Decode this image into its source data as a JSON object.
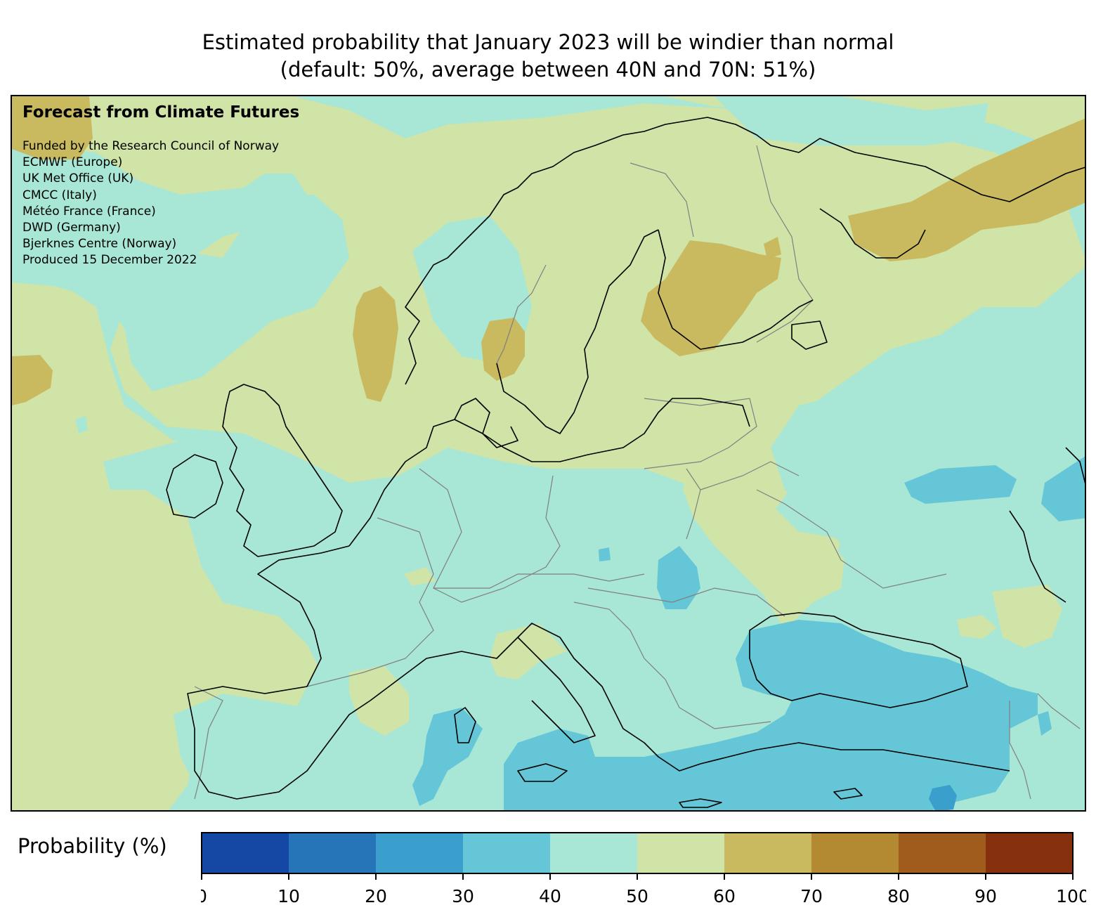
{
  "header": {
    "title_line1": "Estimated probability that January 2023 will be windier than normal",
    "title_line2": "(default: 50%, average between 40N and 70N: 51%)"
  },
  "credits": {
    "heading": "Forecast from Climate Futures",
    "lines": [
      "Funded by the Research Council of Norway",
      "ECMWF (Europe)",
      "UK Met Office (UK)",
      "CMCC (Italy)",
      "Météo France (France)",
      "DWD (Germany)",
      "Bjerknes Centre (Norway)",
      "Produced 15 December 2022"
    ]
  },
  "colorbar": {
    "label": "Probability (%)",
    "ticks": [
      "0",
      "10",
      "20",
      "30",
      "40",
      "50",
      "60",
      "70",
      "80",
      "90",
      "100"
    ],
    "colors": [
      "#1448a4",
      "#2575b8",
      "#3a9fcc",
      "#64c6d6",
      "#a8e6d5",
      "#d0e4a8",
      "#c9ba60",
      "#b38a32",
      "#9f5c1c",
      "#86300e"
    ]
  },
  "map": {
    "background_class_color": "#a8e6d5",
    "level_colors": {
      "20_30": "#3a9fcc",
      "30_40": "#64c6d6",
      "40_50": "#a8e6d5",
      "50_60": "#d0e4a8",
      "60_70": "#c9ba60"
    }
  }
}
